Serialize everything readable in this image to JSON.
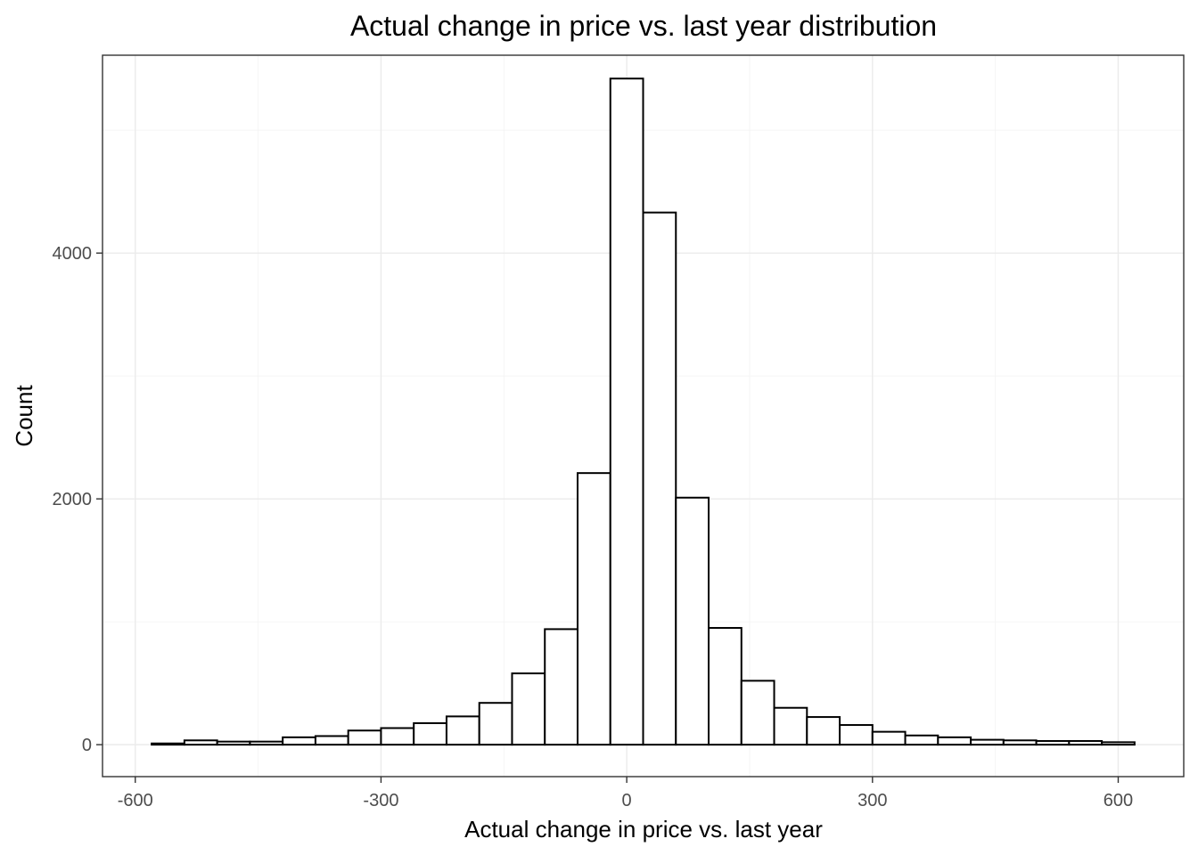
{
  "chart_data": {
    "type": "bar",
    "title": "Actual change in price vs. last year distribution",
    "xlabel": "Actual change in price vs. last year",
    "ylabel": "Count",
    "xlim": [
      -640,
      680
    ],
    "ylim": [
      -260,
      5610
    ],
    "x_ticks": [
      -600,
      -300,
      0,
      300,
      600
    ],
    "x_tick_labels": [
      "-600",
      "-300",
      "0",
      "300",
      "600"
    ],
    "y_ticks": [
      0,
      2000,
      4000
    ],
    "y_tick_labels": [
      "0",
      "2000",
      "4000"
    ],
    "grid": true,
    "bin_width": 40,
    "bin_centers": [
      -560,
      -520,
      -480,
      -440,
      -400,
      -360,
      -320,
      -280,
      -240,
      -200,
      -160,
      -120,
      -80,
      -40,
      0,
      40,
      80,
      120,
      160,
      200,
      240,
      280,
      320,
      360,
      400,
      440,
      480,
      520,
      560,
      600
    ],
    "values": [
      10,
      35,
      25,
      25,
      60,
      70,
      115,
      135,
      175,
      230,
      340,
      580,
      940,
      2210,
      5420,
      4330,
      2010,
      950,
      520,
      300,
      225,
      160,
      105,
      75,
      60,
      40,
      35,
      30,
      30,
      20
    ]
  }
}
